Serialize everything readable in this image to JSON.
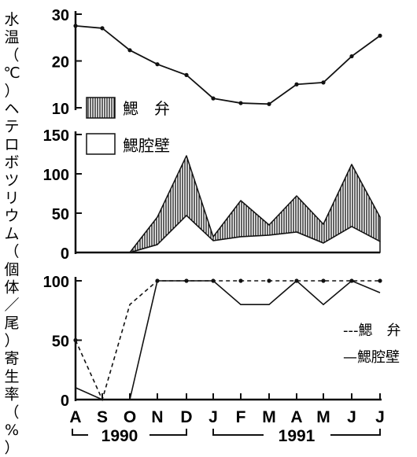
{
  "chart_data": [
    {
      "type": "line",
      "ylabel_parts": [
        "水温",
        "（℃）"
      ],
      "ylim": [
        10,
        30
      ],
      "yticks": [
        "30",
        "20",
        "10"
      ],
      "x": [
        "A",
        "S",
        "O",
        "N",
        "D",
        "J",
        "F",
        "M",
        "A",
        "M",
        "J",
        "J"
      ],
      "series": [
        {
          "name": "",
          "values": [
            27.5,
            27,
            22.3,
            19.3,
            17,
            12,
            11,
            10.8,
            15,
            15.4,
            21,
            25.4
          ]
        }
      ],
      "grid": false
    },
    {
      "type": "area",
      "ylabel": "ヘテロボツリウム（個体／尾）",
      "ylim": [
        0,
        150
      ],
      "yticks": [
        "150",
        "100",
        "50",
        "0"
      ],
      "x": [
        "A",
        "S",
        "O",
        "N",
        "D",
        "J",
        "F",
        "M",
        "A",
        "M",
        "J",
        "J"
      ],
      "series": [
        {
          "name": "鰓 弁",
          "values": [
            0,
            0,
            0,
            45,
            123,
            20,
            66,
            35,
            72,
            36,
            112,
            45
          ],
          "style": "hatched"
        },
        {
          "name": "鰓腔壁",
          "values": [
            0,
            0,
            0,
            10,
            47,
            15,
            20,
            22,
            26,
            12,
            33,
            14
          ],
          "style": "white"
        }
      ],
      "legend": [
        "鰓　弁",
        "鰓腔壁"
      ],
      "legend_position": "top-left",
      "grid": false
    },
    {
      "type": "line",
      "ylabel": "寄生率（%）",
      "ylim": [
        0,
        100
      ],
      "yticks": [
        "100",
        "50",
        "0"
      ],
      "x": [
        "A",
        "S",
        "O",
        "N",
        "D",
        "J",
        "F",
        "M",
        "A",
        "M",
        "J",
        "J"
      ],
      "series": [
        {
          "name": "鰓 弁",
          "values": [
            50,
            0,
            80,
            100,
            100,
            100,
            100,
            100,
            100,
            100,
            100,
            100
          ],
          "dash": "dashed"
        },
        {
          "name": "鰓腔壁",
          "values": [
            10,
            0,
            0,
            100,
            100,
            100,
            80,
            80,
            100,
            80,
            100,
            90
          ],
          "dash": "solid"
        }
      ],
      "legend": [
        "---鰓　弁",
        "—鰓腔壁"
      ],
      "legend_position": "right",
      "grid": false
    }
  ],
  "xaxis": {
    "ticks": [
      "A",
      "S",
      "O",
      "N",
      "D",
      "J",
      "F",
      "M",
      "A",
      "M",
      "J",
      "J"
    ],
    "years": [
      "1990",
      "1991"
    ]
  }
}
